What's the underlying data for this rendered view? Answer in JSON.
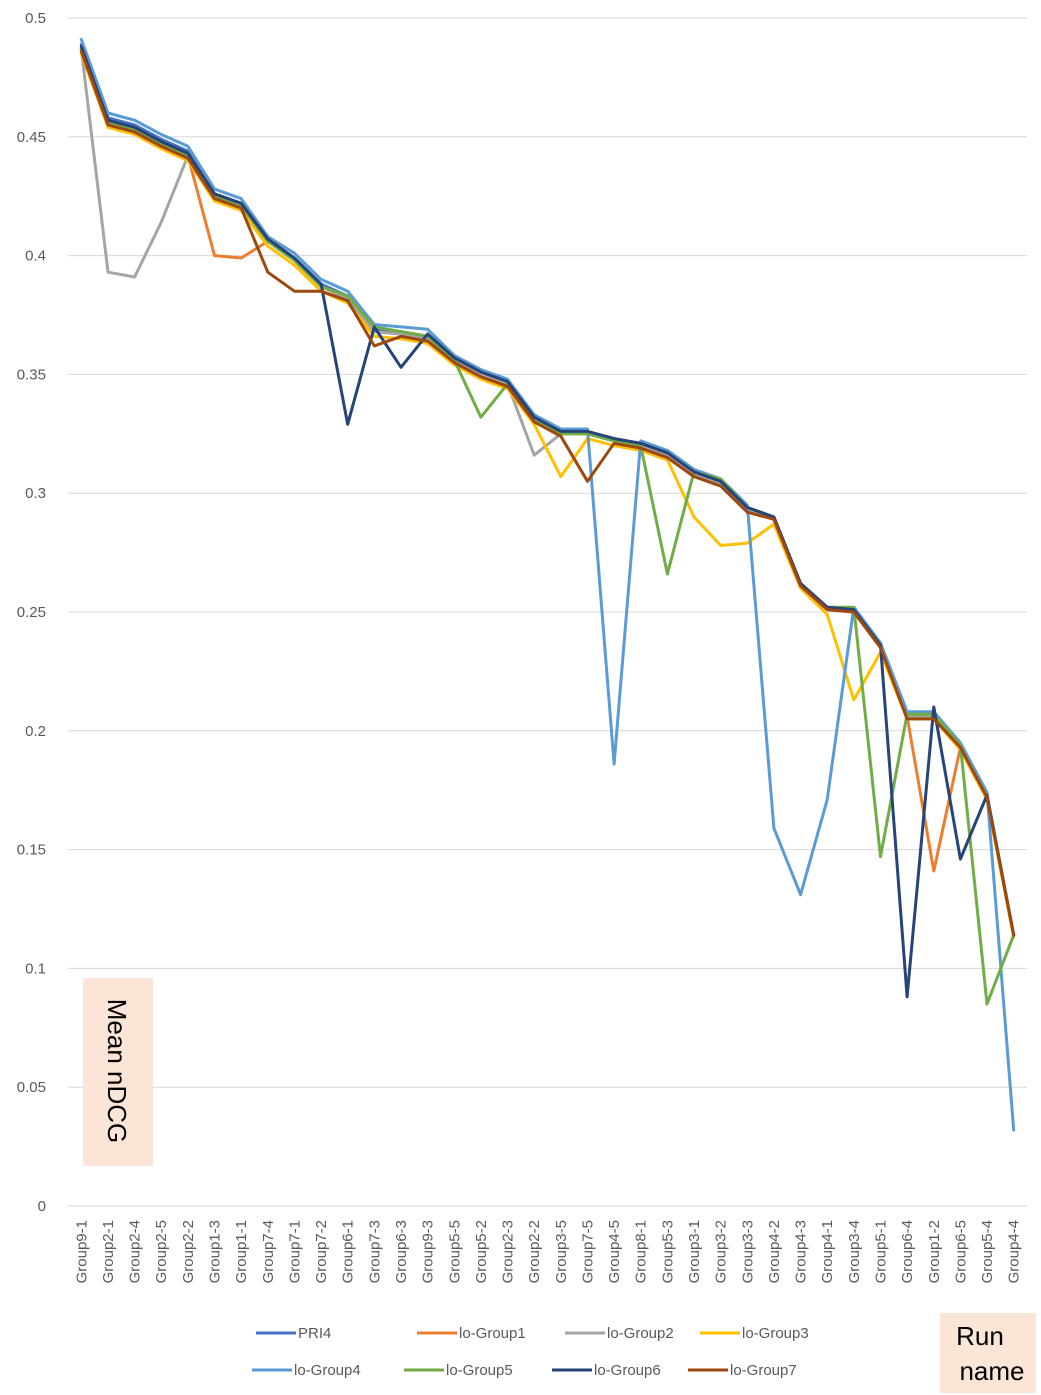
{
  "chart_data": {
    "type": "line",
    "ylabel": "Mean nDCG",
    "xlabel": "Run name",
    "ylim": [
      0,
      0.5
    ],
    "yticks": [
      "0",
      "0.05",
      "0.1",
      "0.15",
      "0.2",
      "0.25",
      "0.3",
      "0.35",
      "0.4",
      "0.45",
      "0.5"
    ],
    "grid": true,
    "legend_position": "bottom",
    "categories": [
      "Group9-1",
      "Group2-1",
      "Group2-4",
      "Group2-5",
      "Group2-2",
      "Group1-3",
      "Group1-1",
      "Group7-4",
      "Group7-1",
      "Group7-2",
      "Group6-1",
      "Group7-3",
      "Group6-3",
      "Group9-3",
      "Group5-5",
      "Group5-2",
      "Group2-3",
      "Group2-2",
      "Group3-5",
      "Group7-5",
      "Group4-5",
      "Group8-1",
      "Group5-3",
      "Group3-1",
      "Group3-2",
      "Group3-3",
      "Group4-2",
      "Group4-3",
      "Group4-1",
      "Group3-4",
      "Group5-1",
      "Group6-4",
      "Group1-2",
      "Group6-5",
      "Group5-4",
      "Group4-4"
    ],
    "series": [
      {
        "name": "PRI4",
        "color": "#4472C4",
        "values": [
          0.489,
          0.458,
          0.455,
          0.449,
          0.444,
          0.426,
          0.422,
          0.407,
          0.399,
          0.388,
          0.383,
          0.369,
          0.368,
          0.366,
          0.357,
          0.351,
          0.347,
          0.332,
          0.326,
          0.326,
          0.323,
          0.321,
          0.317,
          0.309,
          0.305,
          0.294,
          0.29,
          0.262,
          0.252,
          0.251,
          0.236,
          0.207,
          0.207,
          0.194,
          0.173,
          0.114
        ]
      },
      {
        "name": "lo-Group1",
        "color": "#ED7D31",
        "values": [
          0.487,
          0.456,
          0.453,
          0.447,
          0.442,
          0.4,
          0.399,
          0.406,
          0.398,
          0.387,
          0.382,
          0.368,
          0.367,
          0.365,
          0.356,
          0.35,
          0.346,
          0.331,
          0.325,
          0.325,
          0.322,
          0.32,
          0.316,
          0.308,
          0.304,
          0.293,
          0.289,
          0.261,
          0.251,
          0.25,
          0.235,
          0.206,
          0.141,
          0.193,
          0.172,
          0.114
        ]
      },
      {
        "name": "lo-Group2",
        "color": "#A5A5A5",
        "values": [
          0.487,
          0.393,
          0.391,
          0.414,
          0.442,
          0.425,
          0.421,
          0.406,
          0.398,
          0.387,
          0.382,
          0.368,
          0.367,
          0.365,
          0.356,
          0.35,
          0.346,
          0.316,
          0.325,
          0.325,
          0.322,
          0.32,
          0.316,
          0.308,
          0.304,
          0.293,
          0.289,
          0.261,
          0.251,
          0.25,
          0.235,
          0.206,
          0.206,
          0.193,
          0.172,
          0.114
        ]
      },
      {
        "name": "lo-Group3",
        "color": "#FFC000",
        "values": [
          0.485,
          0.454,
          0.451,
          0.445,
          0.44,
          0.423,
          0.419,
          0.404,
          0.396,
          0.385,
          0.38,
          0.366,
          0.365,
          0.363,
          0.354,
          0.348,
          0.344,
          0.329,
          0.307,
          0.323,
          0.32,
          0.318,
          0.314,
          0.29,
          0.278,
          0.279,
          0.287,
          0.26,
          0.249,
          0.213,
          0.233,
          0.205,
          0.205,
          0.192,
          0.171,
          0.113
        ]
      },
      {
        "name": "lo-Group4",
        "color": "#5B9BD5",
        "values": [
          0.491,
          0.46,
          0.457,
          0.451,
          0.446,
          0.428,
          0.424,
          0.408,
          0.401,
          0.39,
          0.385,
          0.371,
          0.37,
          0.369,
          0.358,
          0.352,
          0.348,
          0.333,
          0.327,
          0.327,
          0.186,
          0.322,
          0.318,
          0.31,
          0.306,
          0.295,
          0.159,
          0.131,
          0.171,
          0.252,
          0.237,
          0.208,
          0.208,
          0.195,
          0.174,
          0.032
        ]
      },
      {
        "name": "lo-Group5",
        "color": "#70AD47",
        "values": [
          0.487,
          0.456,
          0.453,
          0.447,
          0.442,
          0.425,
          0.421,
          0.406,
          0.398,
          0.387,
          0.383,
          0.37,
          0.368,
          0.366,
          0.356,
          0.332,
          0.346,
          0.331,
          0.325,
          0.325,
          0.322,
          0.32,
          0.266,
          0.309,
          0.306,
          0.294,
          0.29,
          0.262,
          0.252,
          0.252,
          0.147,
          0.207,
          0.207,
          0.194,
          0.085,
          0.114
        ]
      },
      {
        "name": "lo-Group6",
        "color": "#264478",
        "values": [
          0.488,
          0.457,
          0.454,
          0.448,
          0.443,
          0.426,
          0.422,
          0.407,
          0.399,
          0.388,
          0.329,
          0.37,
          0.353,
          0.367,
          0.357,
          0.351,
          0.347,
          0.332,
          0.326,
          0.326,
          0.323,
          0.321,
          0.317,
          0.309,
          0.305,
          0.294,
          0.29,
          0.262,
          0.252,
          0.251,
          0.236,
          0.088,
          0.21,
          0.146,
          0.173,
          0.114
        ]
      },
      {
        "name": "lo-Group7",
        "color": "#9E480E",
        "values": [
          0.486,
          0.455,
          0.452,
          0.446,
          0.441,
          0.424,
          0.42,
          0.393,
          0.385,
          0.385,
          0.381,
          0.362,
          0.366,
          0.364,
          0.355,
          0.349,
          0.345,
          0.33,
          0.324,
          0.305,
          0.321,
          0.319,
          0.315,
          0.307,
          0.303,
          0.292,
          0.289,
          0.261,
          0.251,
          0.25,
          0.235,
          0.205,
          0.205,
          0.193,
          0.172,
          0.114
        ]
      }
    ]
  },
  "colors": {
    "gridline": "#D9D9D9",
    "ylabel_box": "#FBE5D6",
    "xlabel_box": "#FBE5D6"
  }
}
